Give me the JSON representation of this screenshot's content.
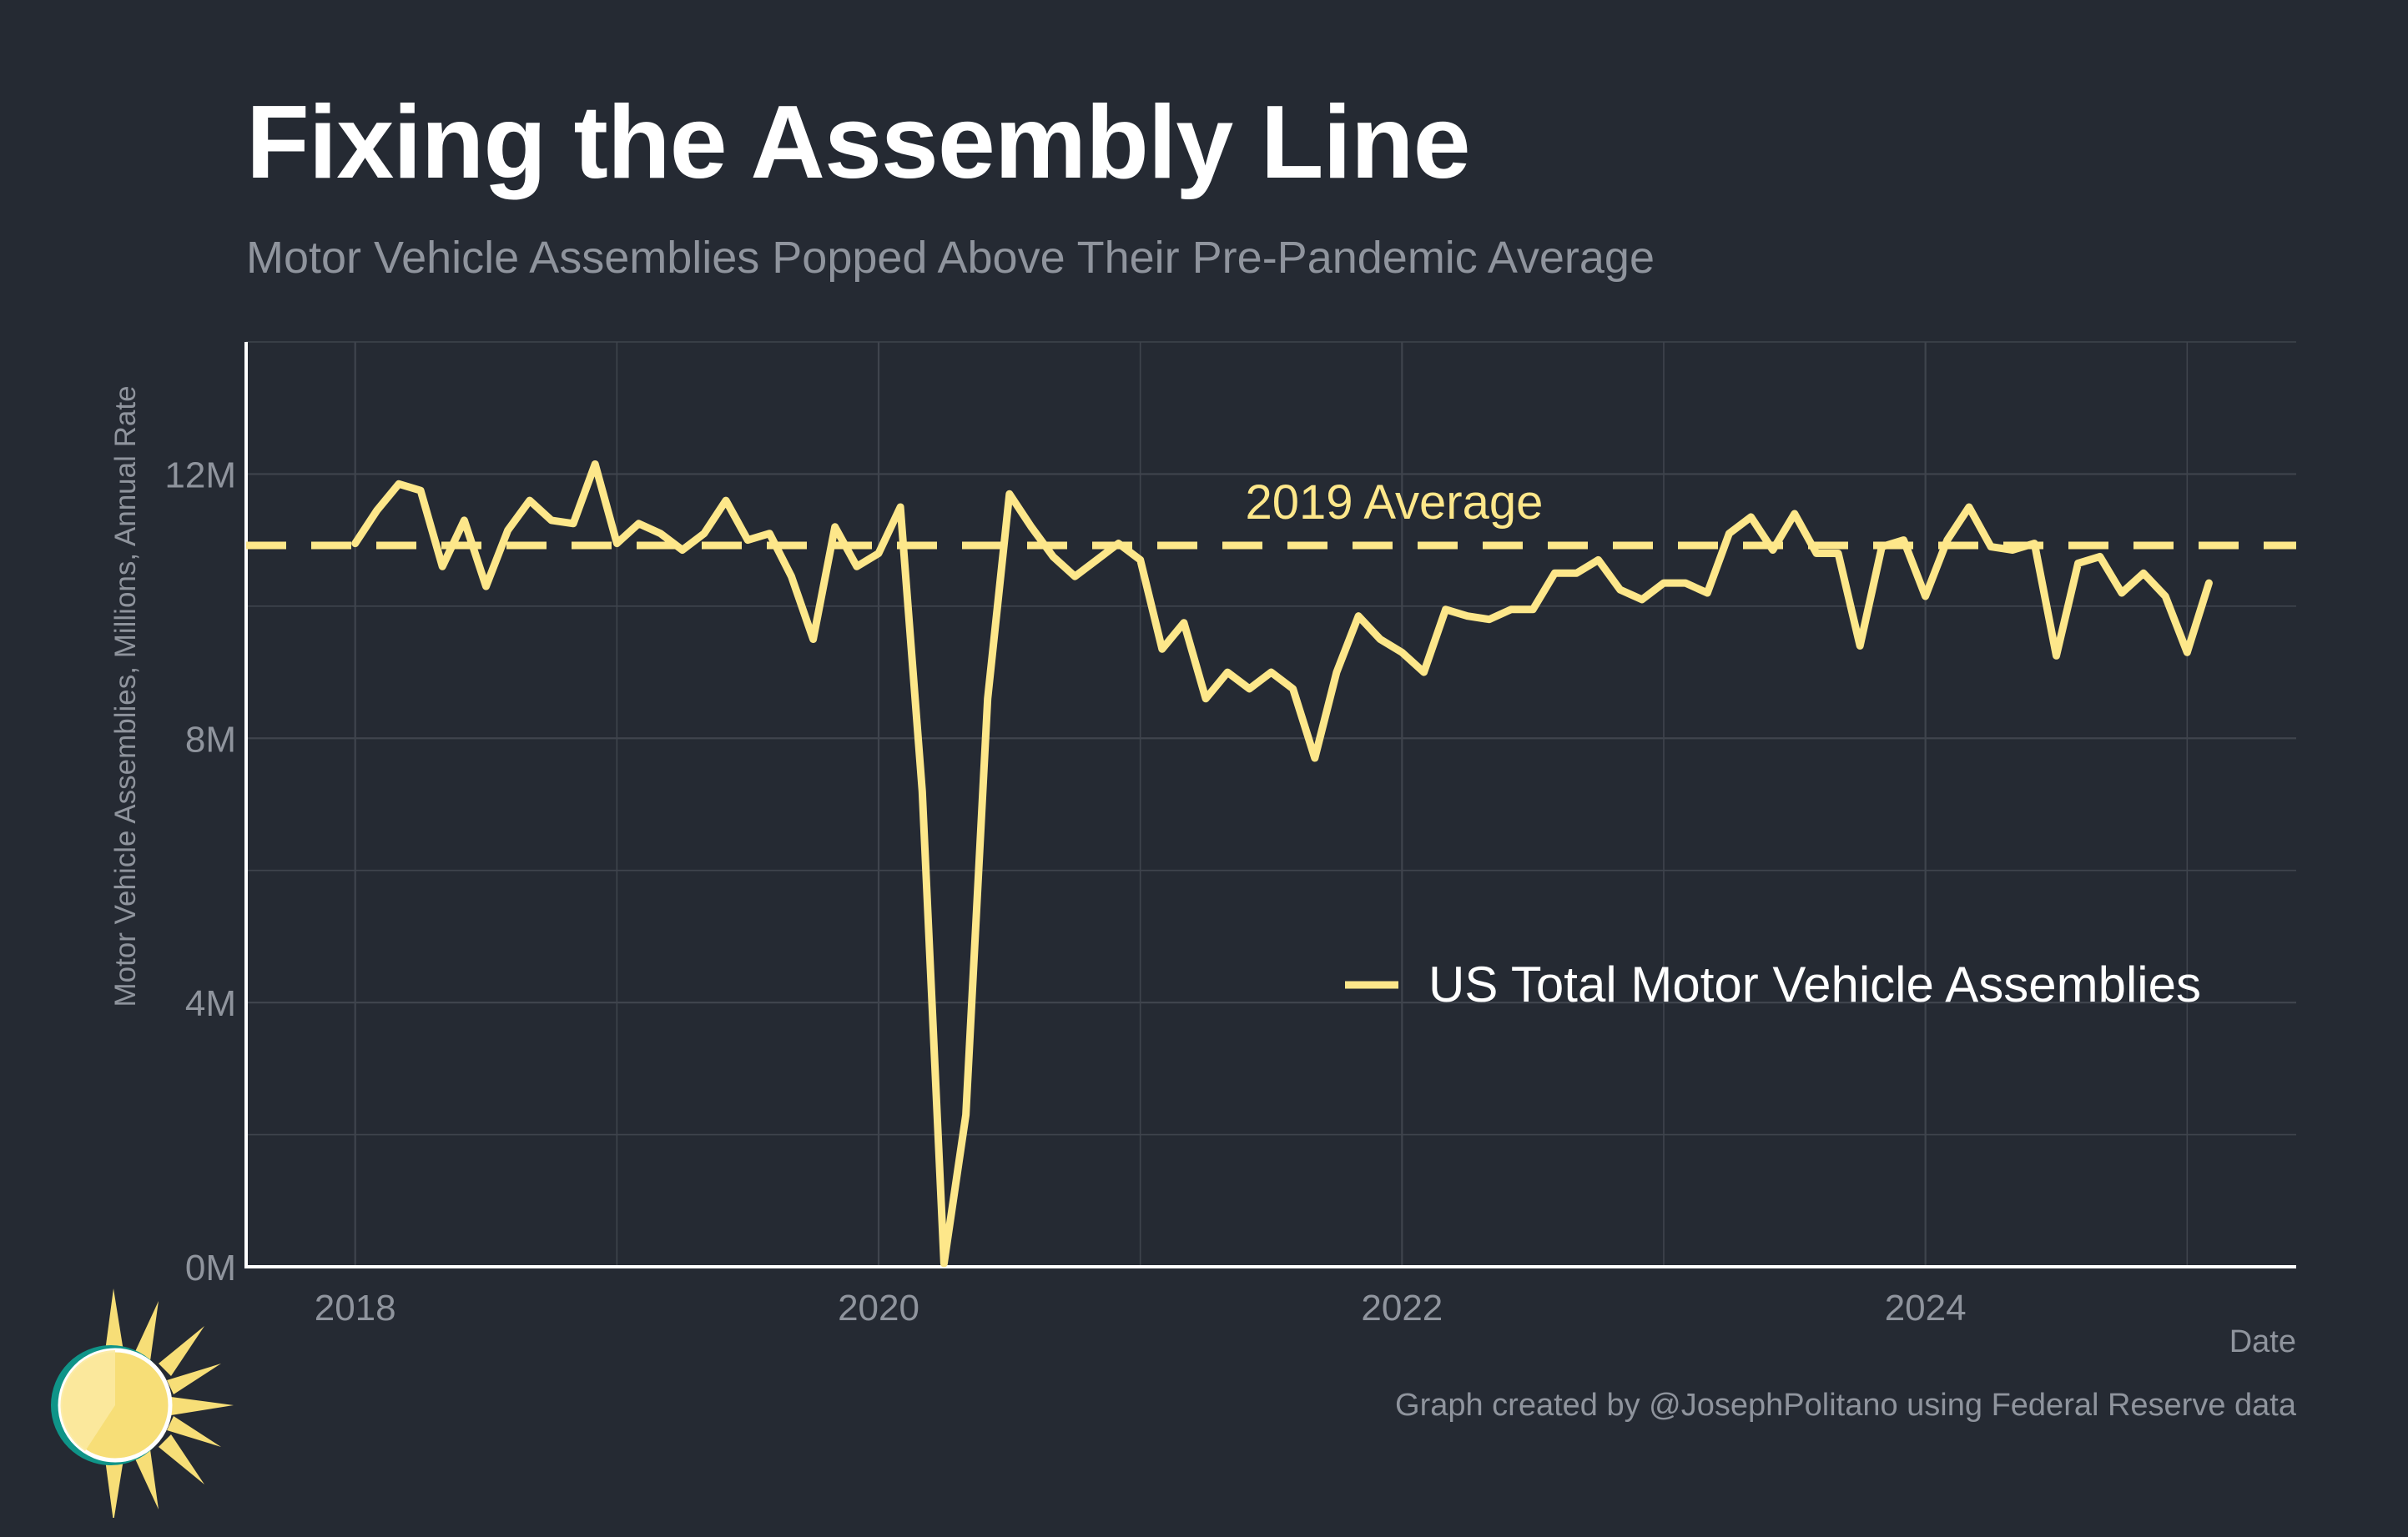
{
  "title": "Fixing the Assembly Line",
  "subtitle": "Motor Vehicle Assemblies Popped Above Their Pre-Pandemic Average",
  "caption": "Graph created by @JosephPolitano using Federal Reserve data",
  "colors": {
    "background": "#252a33",
    "line": "#fde78a",
    "grid": "#3f444d",
    "muted": "#8f949d",
    "logo_ring": "#0f9488",
    "logo_sun": "#f7de77"
  },
  "chart_data": {
    "type": "line",
    "title": "Fixing the Assembly Line",
    "subtitle": "Motor Vehicle Assemblies Popped Above Their Pre-Pandemic Average",
    "xlabel": "Date",
    "ylabel": "Motor Vehicle Assemblies, Millions, Annual Rate",
    "xlim": [
      "2017-08",
      "2025-06"
    ],
    "ylim": [
      0,
      14
    ],
    "x_ticks": [
      2018,
      2020,
      2022,
      2024
    ],
    "x_tick_labels": [
      "2018",
      "2020",
      "2022",
      "2024"
    ],
    "y_ticks": [
      0,
      4,
      8,
      12
    ],
    "y_tick_labels": [
      "0M",
      "4M",
      "8M",
      "12M"
    ],
    "grid": true,
    "legend_position": "bottom-right",
    "reference_line": {
      "label": "2019 Average",
      "value": 10.92,
      "style": "dashed"
    },
    "series": [
      {
        "name": "US Total Motor Vehicle Assemblies",
        "start": "2018-01",
        "frequency": "monthly",
        "values": [
          10.95,
          11.45,
          11.85,
          11.75,
          10.6,
          11.3,
          10.3,
          11.15,
          11.6,
          11.3,
          11.25,
          12.15,
          10.95,
          11.25,
          11.1,
          10.85,
          11.1,
          11.6,
          11.0,
          11.1,
          10.45,
          9.5,
          11.2,
          10.6,
          10.8,
          11.5,
          7.2,
          0.05,
          2.3,
          8.6,
          11.7,
          11.2,
          10.75,
          10.45,
          10.7,
          10.95,
          10.7,
          9.35,
          9.75,
          8.6,
          9.0,
          8.75,
          9.0,
          8.75,
          7.7,
          9.0,
          9.85,
          9.5,
          9.3,
          9.0,
          9.95,
          9.85,
          9.8,
          9.95,
          9.95,
          10.5,
          10.5,
          10.7,
          10.25,
          10.1,
          10.35,
          10.35,
          10.2,
          11.1,
          11.35,
          10.85,
          11.4,
          10.8,
          10.8,
          9.4,
          10.9,
          11.0,
          10.15,
          11.0,
          11.5,
          10.9,
          10.85,
          10.95,
          9.25,
          10.65,
          10.75,
          10.2,
          10.5,
          10.15,
          9.3,
          10.35
        ]
      }
    ]
  }
}
